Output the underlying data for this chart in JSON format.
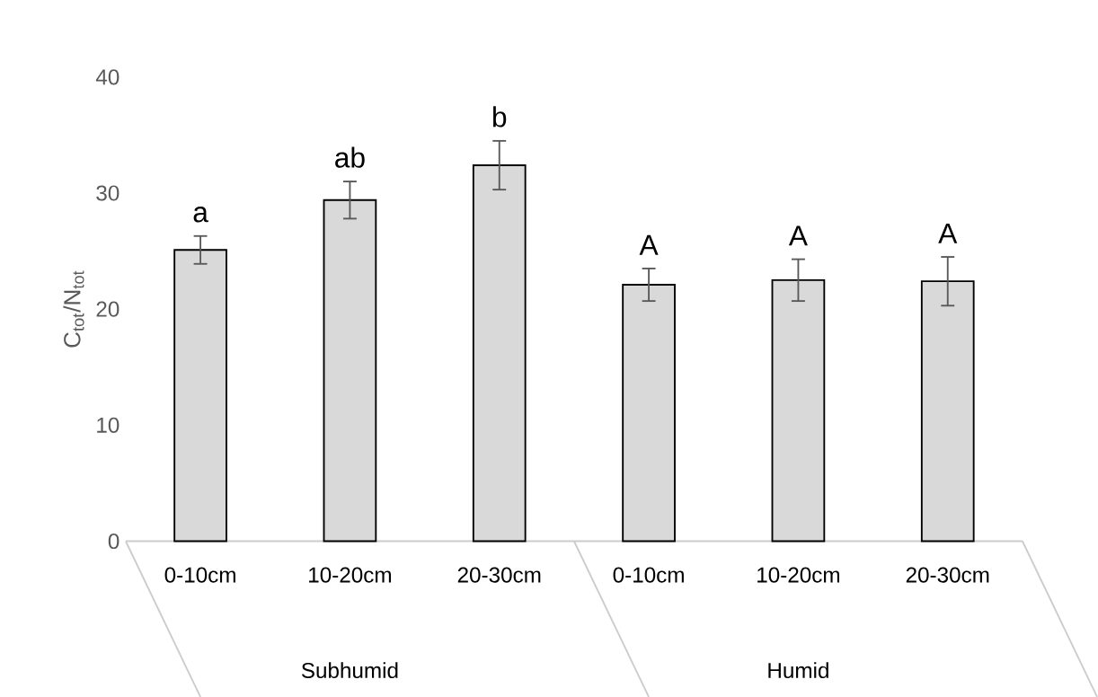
{
  "chart_data": {
    "type": "bar",
    "ylabel": "C$_{tot}$/N$_{tot}$",
    "categories": [
      "0-10cm",
      "10-20cm",
      "20-30cm",
      "0-10cm",
      "10-20cm",
      "20-30cm"
    ],
    "values": [
      25.1,
      29.4,
      32.4,
      22.1,
      22.5,
      22.4
    ],
    "errors": [
      1.2,
      1.6,
      2.1,
      1.4,
      1.8,
      2.1
    ],
    "value_labels": [
      "a",
      "ab",
      "b",
      "A",
      "A",
      "A"
    ],
    "annotations": [
      "Subhumid",
      "Humid"
    ],
    "color": "#d9d9d9",
    "ylim": [
      0,
      40
    ],
    "yticks": [
      0,
      10,
      20,
      30,
      40
    ],
    "grid": false
  }
}
